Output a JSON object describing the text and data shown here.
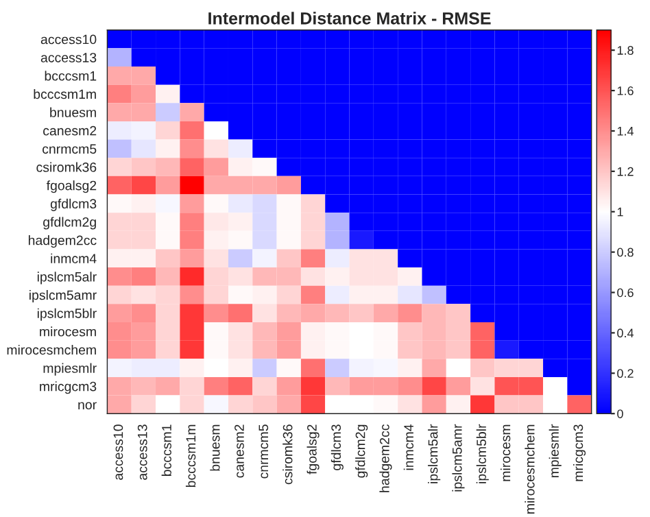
{
  "chart_data": {
    "type": "heatmap",
    "title": "Intermodel Distance Matrix - RMSE",
    "categories": [
      "access10",
      "access13",
      "bcccsm1",
      "bcccsm1m",
      "bnuesm",
      "canesm2",
      "cnrmcm5",
      "csiromk36",
      "fgoalsg2",
      "gfdlcm3",
      "gfdlcm2g",
      "hadgem2cc",
      "inmcm4",
      "ipslcm5alr",
      "ipslcm5amr",
      "ipslcm5blr",
      "mirocesm",
      "mirocesmchem",
      "mpiesmlr",
      "mricgcm3"
    ],
    "y_categories": [
      "access10",
      "access13",
      "bcccsm1",
      "bcccsm1m",
      "bnuesm",
      "canesm2",
      "cnrmcm5",
      "csiromk36",
      "fgoalsg2",
      "gfdlcm3",
      "gfdlcm2g",
      "hadgem2cc",
      "inmcm4",
      "ipslcm5alr",
      "ipslcm5amr",
      "ipslcm5blr",
      "mirocesm",
      "mirocesmchem",
      "mpiesmlr",
      "mricgcm3",
      "nor"
    ],
    "cells": [
      [
        0,
        0,
        0,
        0,
        0,
        0,
        0,
        0,
        0,
        0,
        0,
        0,
        0,
        0,
        0,
        0,
        0,
        0,
        0,
        0
      ],
      [
        0.7,
        0,
        0,
        0,
        0,
        0,
        0,
        0,
        0,
        0,
        0,
        0,
        0,
        0,
        0,
        0,
        0,
        0,
        0,
        0
      ],
      [
        1.3,
        1.3,
        0,
        0,
        0,
        0,
        0,
        0,
        0,
        0,
        0,
        0,
        0,
        0,
        0,
        0,
        0,
        0,
        0,
        0
      ],
      [
        1.45,
        1.35,
        1.05,
        0,
        0,
        0,
        0,
        0,
        0,
        0,
        0,
        0,
        0,
        0,
        0,
        0,
        0,
        0,
        0,
        0
      ],
      [
        1.3,
        1.3,
        0.8,
        1.3,
        0,
        0,
        0,
        0,
        0,
        0,
        0,
        0,
        0,
        0,
        0,
        0,
        0,
        0,
        0,
        0
      ],
      [
        0.93,
        0.95,
        1.15,
        1.5,
        1.0,
        0,
        0,
        0,
        0,
        0,
        0,
        0,
        0,
        0,
        0,
        0,
        0,
        0,
        0,
        0
      ],
      [
        0.75,
        0.9,
        1.05,
        1.4,
        1.1,
        0.93,
        0,
        0,
        0,
        0,
        0,
        0,
        0,
        0,
        0,
        0,
        0,
        0,
        0,
        0
      ],
      [
        1.15,
        1.2,
        1.25,
        1.55,
        1.35,
        1.05,
        1.02,
        0,
        0,
        0,
        0,
        0,
        0,
        0,
        0,
        0,
        0,
        0,
        0,
        0
      ],
      [
        1.55,
        1.65,
        1.35,
        1.9,
        1.3,
        1.3,
        1.3,
        1.35,
        0,
        0,
        0,
        0,
        0,
        0,
        0,
        0,
        0,
        0,
        0,
        0
      ],
      [
        1.02,
        1.05,
        0.97,
        1.35,
        1.02,
        0.92,
        0.85,
        1.02,
        1.15,
        0,
        0,
        0,
        0,
        0,
        0,
        0,
        0,
        0,
        0,
        0
      ],
      [
        1.15,
        1.15,
        1.02,
        1.45,
        1.08,
        1.05,
        0.85,
        1.02,
        1.15,
        0.7,
        0,
        0,
        0,
        0,
        0,
        0,
        0,
        0,
        0,
        0
      ],
      [
        1.15,
        1.15,
        1.02,
        1.45,
        1.05,
        1.02,
        0.85,
        1.02,
        1.15,
        0.7,
        0.1,
        0,
        0,
        0,
        0,
        0,
        0,
        0,
        0,
        0
      ],
      [
        1.05,
        1.05,
        1.2,
        1.35,
        1.1,
        0.8,
        0.95,
        1.2,
        1.45,
        0.93,
        1.1,
        1.1,
        0,
        0,
        0,
        0,
        0,
        0,
        0,
        0
      ],
      [
        1.4,
        1.45,
        1.25,
        1.75,
        1.15,
        1.1,
        1.25,
        1.25,
        1.1,
        1.05,
        1.1,
        1.1,
        1.05,
        0,
        0,
        0,
        0,
        0,
        0,
        0
      ],
      [
        1.15,
        1.1,
        1.15,
        1.4,
        1.15,
        1.02,
        1.05,
        1.15,
        1.45,
        0.93,
        1.05,
        1.05,
        0.9,
        0.75,
        0,
        0,
        0,
        0,
        0,
        0
      ],
      [
        1.35,
        1.4,
        1.15,
        1.7,
        1.4,
        1.5,
        1.1,
        1.25,
        1.3,
        1.25,
        1.2,
        1.3,
        1.4,
        1.25,
        1.2,
        0,
        0,
        0,
        0,
        0
      ],
      [
        1.4,
        1.35,
        1.15,
        1.7,
        1.02,
        1.1,
        1.25,
        1.35,
        1.05,
        1.02,
        1.0,
        1.02,
        1.2,
        1.25,
        1.2,
        1.55,
        0,
        0,
        0,
        0
      ],
      [
        1.4,
        1.35,
        1.15,
        1.7,
        1.02,
        1.1,
        1.25,
        1.35,
        1.05,
        1.02,
        1.0,
        1.02,
        1.2,
        1.25,
        1.2,
        1.55,
        0.1,
        0,
        0,
        0
      ],
      [
        0.95,
        0.93,
        0.93,
        1.05,
        1.0,
        1.05,
        0.8,
        1.02,
        1.5,
        0.8,
        0.95,
        0.97,
        1.05,
        1.3,
        1.0,
        1.2,
        1.15,
        1.15,
        0,
        0
      ],
      [
        1.3,
        1.25,
        1.3,
        1.15,
        1.45,
        1.55,
        1.15,
        1.35,
        1.7,
        1.25,
        1.35,
        1.35,
        1.4,
        1.65,
        1.35,
        1.1,
        1.6,
        1.6,
        1.0,
        0
      ],
      [
        1.3,
        1.15,
        1.0,
        1.15,
        0.97,
        1.15,
        1.2,
        1.3,
        1.65,
        1.0,
        1.0,
        1.02,
        1.1,
        1.35,
        1.05,
        1.7,
        1.2,
        1.2,
        1.0,
        1.55
      ]
    ],
    "clim": [
      0,
      1.9
    ],
    "cticks": [
      0,
      0.2,
      0.4,
      0.6,
      0.8,
      1,
      1.2,
      1.4,
      1.6,
      1.8
    ]
  }
}
